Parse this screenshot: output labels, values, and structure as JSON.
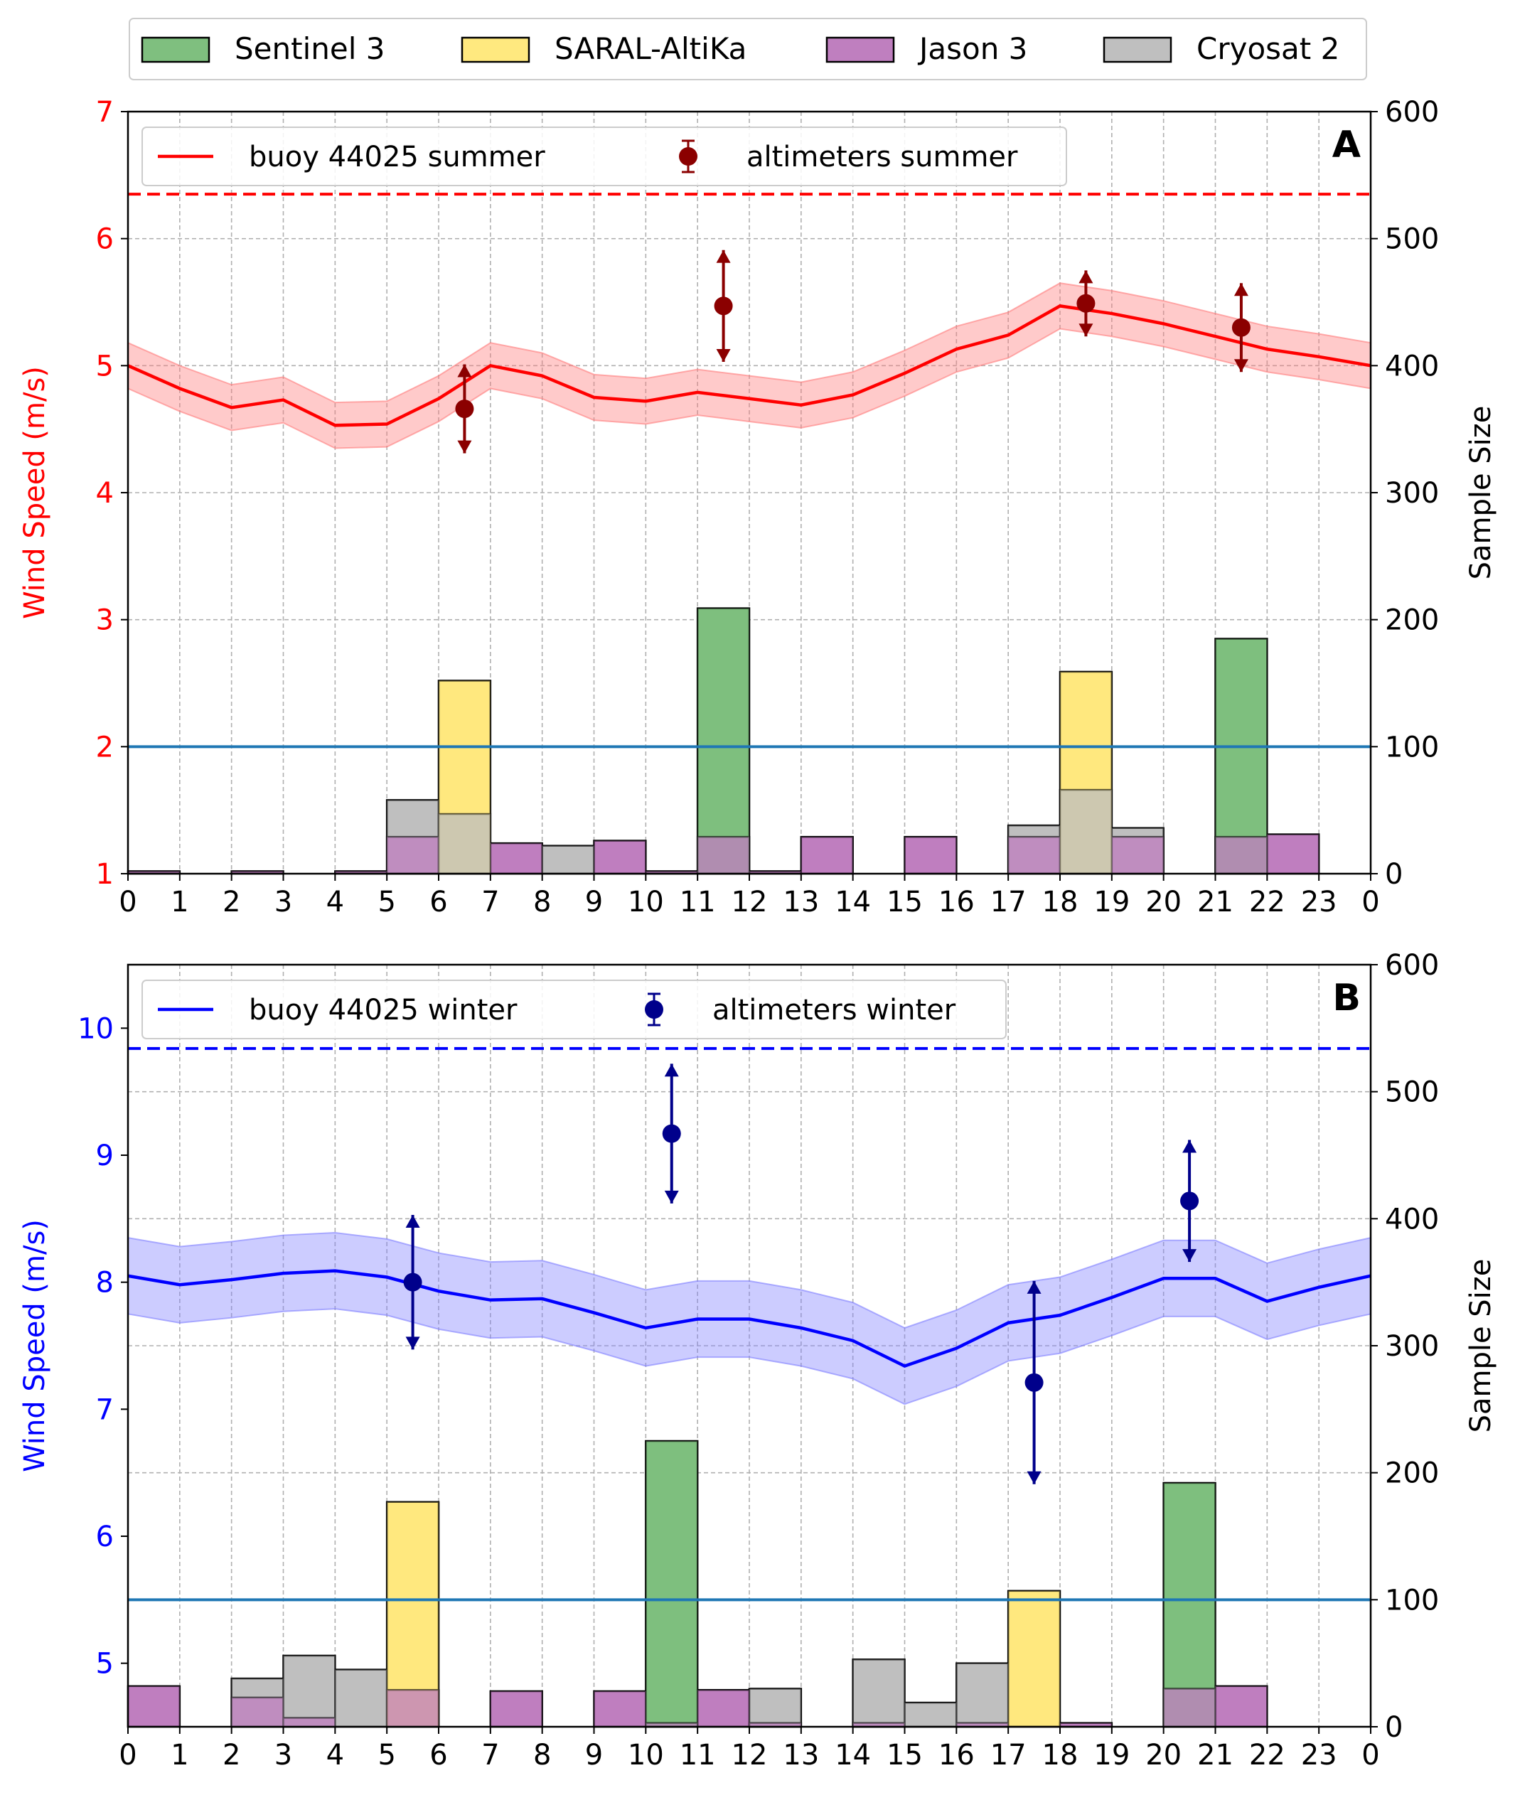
{
  "figure_legend": {
    "entries": [
      {
        "label": "Sentinel 3",
        "color": "#7fbf7f"
      },
      {
        "label": "SARAL-AltiKa",
        "color": "#ffe97f"
      },
      {
        "label": "Jason 3",
        "color": "#bf7fbf"
      },
      {
        "label": "Cryosat 2",
        "color": "#bfbfbf"
      }
    ]
  },
  "chart_data": [
    {
      "type": "line",
      "panel_label": "A",
      "ylabel": "Wind Speed (m/s)",
      "y2label": "Sample Size",
      "ylim": [
        1,
        7
      ],
      "y2lim": [
        0,
        600
      ],
      "xlim": [
        0,
        24
      ],
      "xticks": [
        "0",
        "1",
        "2",
        "3",
        "4",
        "5",
        "6",
        "7",
        "8",
        "9",
        "10",
        "11",
        "12",
        "13",
        "14",
        "15",
        "16",
        "17",
        "18",
        "19",
        "20",
        "21",
        "22",
        "23",
        "0"
      ],
      "yticks": [
        "1",
        "2",
        "3",
        "4",
        "5",
        "6",
        "7"
      ],
      "y2ticks": [
        "0",
        "100",
        "200",
        "300",
        "400",
        "500",
        "600"
      ],
      "grid": true,
      "legend_position": "top-left",
      "axis_color": "#ff0000",
      "buoy": {
        "name": "buoy 44025 summer",
        "color": "#ff0000",
        "band_color": "#ff7b7b",
        "x": [
          0,
          1,
          2,
          3,
          4,
          5,
          6,
          7,
          8,
          9,
          10,
          11,
          12,
          13,
          14,
          15,
          16,
          17,
          18,
          19,
          20,
          21,
          22,
          23,
          24
        ],
        "y": [
          5.0,
          4.82,
          4.67,
          4.73,
          4.53,
          4.54,
          4.74,
          5.0,
          4.92,
          4.75,
          4.72,
          4.79,
          4.74,
          4.69,
          4.77,
          4.94,
          5.13,
          5.24,
          5.47,
          5.41,
          5.33,
          5.23,
          5.13,
          5.07,
          5.0
        ],
        "band": 0.18
      },
      "altimeters": {
        "name": "altimeters summer",
        "color": "#8b0000",
        "x": [
          6.5,
          11.5,
          18.5,
          21.5
        ],
        "y": [
          4.66,
          5.47,
          5.49,
          5.3
        ],
        "err": [
          0.35,
          0.44,
          0.26,
          0.35
        ]
      },
      "dashed_line": 6.35,
      "hline_right": 100,
      "bars": [
        {
          "x0": 0,
          "x1": 1,
          "series": "Jason 3",
          "v": 2
        },
        {
          "x0": 2,
          "x1": 3,
          "series": "Jason 3",
          "v": 2
        },
        {
          "x0": 4,
          "x1": 5,
          "series": "Jason 3",
          "v": 2
        },
        {
          "x0": 5,
          "x1": 6,
          "series": "Cryosat 2",
          "v": 58
        },
        {
          "x0": 5,
          "x1": 6,
          "series": "Jason 3",
          "v": 29
        },
        {
          "x0": 6,
          "x1": 7,
          "series": "SARAL-AltiKa",
          "v": 152
        },
        {
          "x0": 6,
          "x1": 7,
          "series": "Cryosat 2",
          "v": 47
        },
        {
          "x0": 7,
          "x1": 8,
          "series": "Jason 3",
          "v": 24
        },
        {
          "x0": 8,
          "x1": 9,
          "series": "Cryosat 2",
          "v": 22
        },
        {
          "x0": 9,
          "x1": 10,
          "series": "Jason 3",
          "v": 26
        },
        {
          "x0": 10,
          "x1": 11,
          "series": "Jason 3",
          "v": 2
        },
        {
          "x0": 11,
          "x1": 12,
          "series": "Sentinel 3",
          "v": 209
        },
        {
          "x0": 11,
          "x1": 12,
          "series": "Jason 3",
          "v": 29
        },
        {
          "x0": 12,
          "x1": 13,
          "series": "Jason 3",
          "v": 2
        },
        {
          "x0": 13,
          "x1": 14,
          "series": "Jason 3",
          "v": 29
        },
        {
          "x0": 15,
          "x1": 16,
          "series": "Jason 3",
          "v": 29
        },
        {
          "x0": 17,
          "x1": 18,
          "series": "Cryosat 2",
          "v": 38
        },
        {
          "x0": 17,
          "x1": 18,
          "series": "Jason 3",
          "v": 29
        },
        {
          "x0": 18,
          "x1": 19,
          "series": "SARAL-AltiKa",
          "v": 159
        },
        {
          "x0": 18,
          "x1": 19,
          "series": "Cryosat 2",
          "v": 66
        },
        {
          "x0": 19,
          "x1": 20,
          "series": "Cryosat 2",
          "v": 36
        },
        {
          "x0": 19,
          "x1": 20,
          "series": "Jason 3",
          "v": 29
        },
        {
          "x0": 21,
          "x1": 22,
          "series": "Sentinel 3",
          "v": 185
        },
        {
          "x0": 21,
          "x1": 22,
          "series": "Jason 3",
          "v": 29
        },
        {
          "x0": 22,
          "x1": 23,
          "series": "Jason 3",
          "v": 31
        }
      ]
    },
    {
      "type": "line",
      "panel_label": "B",
      "ylabel": "Wind Speed (m/s)",
      "y2label": "Sample Size",
      "ylim": [
        4.5,
        10.5
      ],
      "y2lim": [
        0,
        600
      ],
      "xlim": [
        0,
        24
      ],
      "xticks": [
        "0",
        "1",
        "2",
        "3",
        "4",
        "5",
        "6",
        "7",
        "8",
        "9",
        "10",
        "11",
        "12",
        "13",
        "14",
        "15",
        "16",
        "17",
        "18",
        "19",
        "20",
        "21",
        "22",
        "23",
        "0"
      ],
      "yticks": [
        "5",
        "6",
        "7",
        "8",
        "9",
        "10"
      ],
      "yticks_values": [
        5,
        6,
        7,
        8,
        9,
        10
      ],
      "y2ticks": [
        "0",
        "100",
        "200",
        "300",
        "400",
        "500",
        "600"
      ],
      "grid": true,
      "legend_position": "top-left",
      "axis_color": "#0000ff",
      "buoy": {
        "name": "buoy 44025 winter",
        "color": "#0000ff",
        "band_color": "#7f7fff",
        "x": [
          0,
          1,
          2,
          3,
          4,
          5,
          6,
          7,
          8,
          9,
          10,
          11,
          12,
          13,
          14,
          15,
          16,
          17,
          18,
          19,
          20,
          21,
          22,
          23,
          24
        ],
        "y": [
          8.05,
          7.98,
          8.02,
          8.07,
          8.09,
          8.04,
          7.93,
          7.86,
          7.87,
          7.76,
          7.64,
          7.71,
          7.71,
          7.64,
          7.54,
          7.34,
          7.48,
          7.68,
          7.74,
          7.88,
          8.03,
          8.03,
          7.85,
          7.96,
          8.05
        ],
        "band": 0.3
      },
      "altimeters": {
        "name": "altimeters winter",
        "color": "#00008b",
        "x": [
          5.5,
          10.5,
          17.5,
          20.5
        ],
        "y": [
          8.0,
          9.17,
          7.21,
          8.64
        ],
        "err": [
          0.53,
          0.55,
          0.8,
          0.48
        ]
      },
      "dashed_line": 9.84,
      "hline_right": 100,
      "bars": [
        {
          "x0": 0,
          "x1": 1,
          "series": "Jason 3",
          "v": 32
        },
        {
          "x0": 2,
          "x1": 3,
          "series": "Cryosat 2",
          "v": 38
        },
        {
          "x0": 2,
          "x1": 3,
          "series": "Jason 3",
          "v": 23
        },
        {
          "x0": 3,
          "x1": 4,
          "series": "Cryosat 2",
          "v": 56
        },
        {
          "x0": 3,
          "x1": 4,
          "series": "Jason 3",
          "v": 7
        },
        {
          "x0": 4,
          "x1": 5,
          "series": "Cryosat 2",
          "v": 45
        },
        {
          "x0": 5,
          "x1": 6,
          "series": "SARAL-AltiKa",
          "v": 177
        },
        {
          "x0": 5,
          "x1": 6,
          "series": "Jason 3",
          "v": 29
        },
        {
          "x0": 7,
          "x1": 8,
          "series": "Jason 3",
          "v": 28
        },
        {
          "x0": 9,
          "x1": 10,
          "series": "Jason 3",
          "v": 28
        },
        {
          "x0": 10,
          "x1": 11,
          "series": "Sentinel 3",
          "v": 225
        },
        {
          "x0": 10,
          "x1": 11,
          "series": "Jason 3",
          "v": 3
        },
        {
          "x0": 11,
          "x1": 12,
          "series": "Jason 3",
          "v": 29
        },
        {
          "x0": 12,
          "x1": 13,
          "series": "Cryosat 2",
          "v": 30
        },
        {
          "x0": 12,
          "x1": 13,
          "series": "Jason 3",
          "v": 3
        },
        {
          "x0": 14,
          "x1": 15,
          "series": "Cryosat 2",
          "v": 53
        },
        {
          "x0": 14,
          "x1": 15,
          "series": "Jason 3",
          "v": 3
        },
        {
          "x0": 15,
          "x1": 16,
          "series": "Cryosat 2",
          "v": 19
        },
        {
          "x0": 16,
          "x1": 17,
          "series": "Cryosat 2",
          "v": 50
        },
        {
          "x0": 16,
          "x1": 17,
          "series": "Jason 3",
          "v": 3
        },
        {
          "x0": 17,
          "x1": 18,
          "series": "SARAL-AltiKa",
          "v": 107
        },
        {
          "x0": 18,
          "x1": 19,
          "series": "Jason 3",
          "v": 3
        },
        {
          "x0": 20,
          "x1": 21,
          "series": "Sentinel 3",
          "v": 192
        },
        {
          "x0": 20,
          "x1": 21,
          "series": "Jason 3",
          "v": 30
        },
        {
          "x0": 21,
          "x1": 22,
          "series": "Jason 3",
          "v": 32
        }
      ]
    }
  ]
}
